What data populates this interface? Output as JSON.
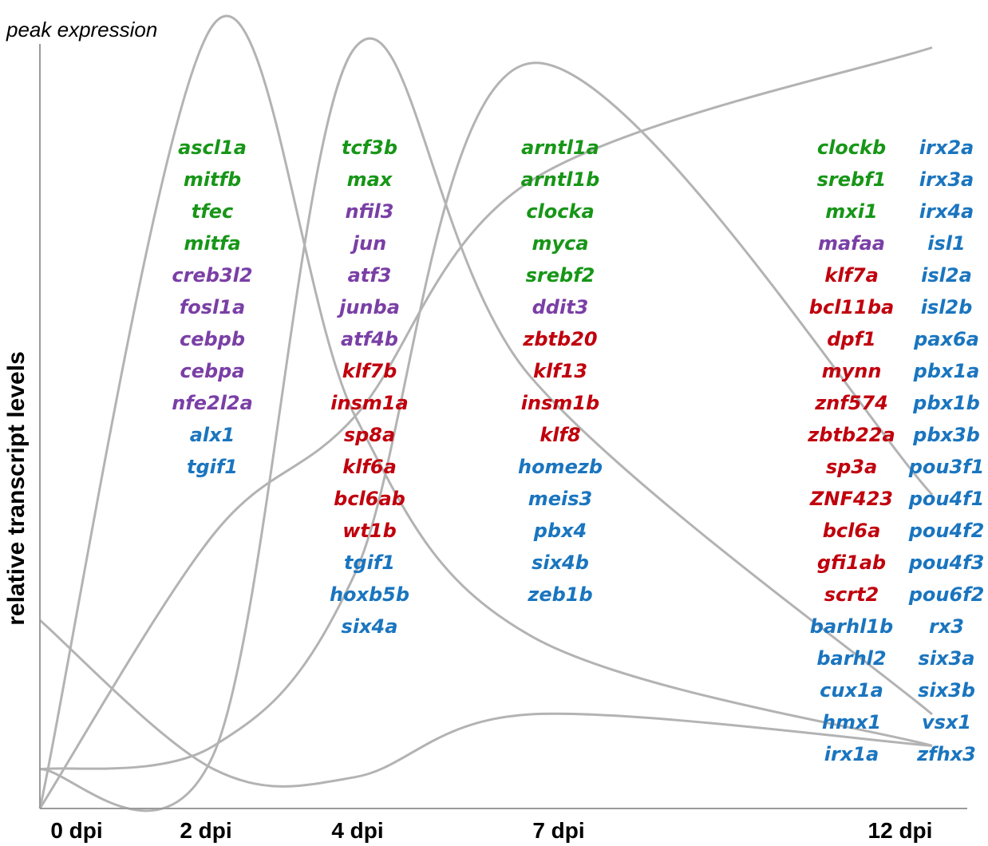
{
  "chart_data": {
    "type": "line",
    "ylabel": "relative transcript levels",
    "xlabel": "",
    "peak_label": "peak expression",
    "x_ticks": [
      "0 dpi",
      "2 dpi",
      "4 dpi",
      "7 dpi",
      "12 dpi"
    ],
    "series_color": "#b3b3b3",
    "series": [
      {
        "values": [
          0.24,
          0.05,
          0.04,
          0.12,
          0.08
        ]
      },
      {
        "values": [
          0.0,
          1.0,
          0.5,
          0.22,
          0.08
        ]
      },
      {
        "values": [
          0.05,
          0.07,
          0.97,
          0.55,
          0.12
        ]
      },
      {
        "values": [
          0.05,
          0.08,
          0.3,
          0.95,
          0.4
        ]
      },
      {
        "values": [
          0.0,
          0.35,
          0.5,
          0.8,
          0.97
        ]
      }
    ],
    "colors": {
      "green": "#179617",
      "purple": "#7a3fa6",
      "red": "#c0000d",
      "blue": "#1a75bf"
    },
    "gene_columns": [
      {
        "genes": [
          {
            "name": "ascl1a",
            "color": "green"
          },
          {
            "name": "mitfb",
            "color": "green"
          },
          {
            "name": "tfec",
            "color": "green"
          },
          {
            "name": "mitfa",
            "color": "green"
          },
          {
            "name": "creb3l2",
            "color": "purple"
          },
          {
            "name": "fosl1a",
            "color": "purple"
          },
          {
            "name": "cebpb",
            "color": "purple"
          },
          {
            "name": "cebpa",
            "color": "purple"
          },
          {
            "name": "nfe2l2a",
            "color": "purple"
          },
          {
            "name": "alx1",
            "color": "blue"
          },
          {
            "name": "tgif1",
            "color": "blue"
          }
        ]
      },
      {
        "genes": [
          {
            "name": "tcf3b",
            "color": "green"
          },
          {
            "name": "max",
            "color": "green"
          },
          {
            "name": "nfil3",
            "color": "purple"
          },
          {
            "name": "jun",
            "color": "purple"
          },
          {
            "name": "atf3",
            "color": "purple"
          },
          {
            "name": "junba",
            "color": "purple"
          },
          {
            "name": "atf4b",
            "color": "purple"
          },
          {
            "name": "klf7b",
            "color": "red"
          },
          {
            "name": "insm1a",
            "color": "red"
          },
          {
            "name": "sp8a",
            "color": "red"
          },
          {
            "name": "klf6a",
            "color": "red"
          },
          {
            "name": "bcl6ab",
            "color": "red"
          },
          {
            "name": "wt1b",
            "color": "red"
          },
          {
            "name": "tgif1",
            "color": "blue"
          },
          {
            "name": "hoxb5b",
            "color": "blue"
          },
          {
            "name": "six4a",
            "color": "blue"
          }
        ]
      },
      {
        "genes": [
          {
            "name": "arntl1a",
            "color": "green"
          },
          {
            "name": "arntl1b",
            "color": "green"
          },
          {
            "name": "clocka",
            "color": "green"
          },
          {
            "name": "myca",
            "color": "green"
          },
          {
            "name": "srebf2",
            "color": "green"
          },
          {
            "name": "ddit3",
            "color": "purple"
          },
          {
            "name": "zbtb20",
            "color": "red"
          },
          {
            "name": "klf13",
            "color": "red"
          },
          {
            "name": "insm1b",
            "color": "red"
          },
          {
            "name": "klf8",
            "color": "red"
          },
          {
            "name": "homezb",
            "color": "blue"
          },
          {
            "name": "meis3",
            "color": "blue"
          },
          {
            "name": "pbx4",
            "color": "blue"
          },
          {
            "name": "six4b",
            "color": "blue"
          },
          {
            "name": "zeb1b",
            "color": "blue"
          }
        ]
      },
      {
        "genes": [
          {
            "name": "clockb",
            "color": "green"
          },
          {
            "name": "srebf1",
            "color": "green"
          },
          {
            "name": "mxi1",
            "color": "green"
          },
          {
            "name": "mafaa",
            "color": "purple"
          },
          {
            "name": "klf7a",
            "color": "red"
          },
          {
            "name": "bcl11ba",
            "color": "red"
          },
          {
            "name": "dpf1",
            "color": "red"
          },
          {
            "name": "mynn",
            "color": "red"
          },
          {
            "name": "znf574",
            "color": "red"
          },
          {
            "name": "zbtb22a",
            "color": "red"
          },
          {
            "name": "sp3a",
            "color": "red"
          },
          {
            "name": "ZNF423",
            "color": "red"
          },
          {
            "name": "bcl6a",
            "color": "red"
          },
          {
            "name": "gfi1ab",
            "color": "red"
          },
          {
            "name": "scrt2",
            "color": "red"
          },
          {
            "name": "barhl1b",
            "color": "blue"
          },
          {
            "name": "barhl2",
            "color": "blue"
          },
          {
            "name": "cux1a",
            "color": "blue"
          },
          {
            "name": "hmx1",
            "color": "blue"
          },
          {
            "name": "irx1a",
            "color": "blue"
          }
        ]
      },
      {
        "genes": [
          {
            "name": "irx2a",
            "color": "blue"
          },
          {
            "name": "irx3a",
            "color": "blue"
          },
          {
            "name": "irx4a",
            "color": "blue"
          },
          {
            "name": "isl1",
            "color": "blue"
          },
          {
            "name": "isl2a",
            "color": "blue"
          },
          {
            "name": "isl2b",
            "color": "blue"
          },
          {
            "name": "pax6a",
            "color": "blue"
          },
          {
            "name": "pbx1a",
            "color": "blue"
          },
          {
            "name": "pbx1b",
            "color": "blue"
          },
          {
            "name": "pbx3b",
            "color": "blue"
          },
          {
            "name": "pou3f1",
            "color": "blue"
          },
          {
            "name": "pou4f1",
            "color": "blue"
          },
          {
            "name": "pou4f2",
            "color": "blue"
          },
          {
            "name": "pou4f3",
            "color": "blue"
          },
          {
            "name": "pou6f2",
            "color": "blue"
          },
          {
            "name": "rx3",
            "color": "blue"
          },
          {
            "name": "six3a",
            "color": "blue"
          },
          {
            "name": "six3b",
            "color": "blue"
          },
          {
            "name": "vsx1",
            "color": "blue"
          },
          {
            "name": "zfhx3",
            "color": "blue"
          }
        ]
      }
    ]
  }
}
